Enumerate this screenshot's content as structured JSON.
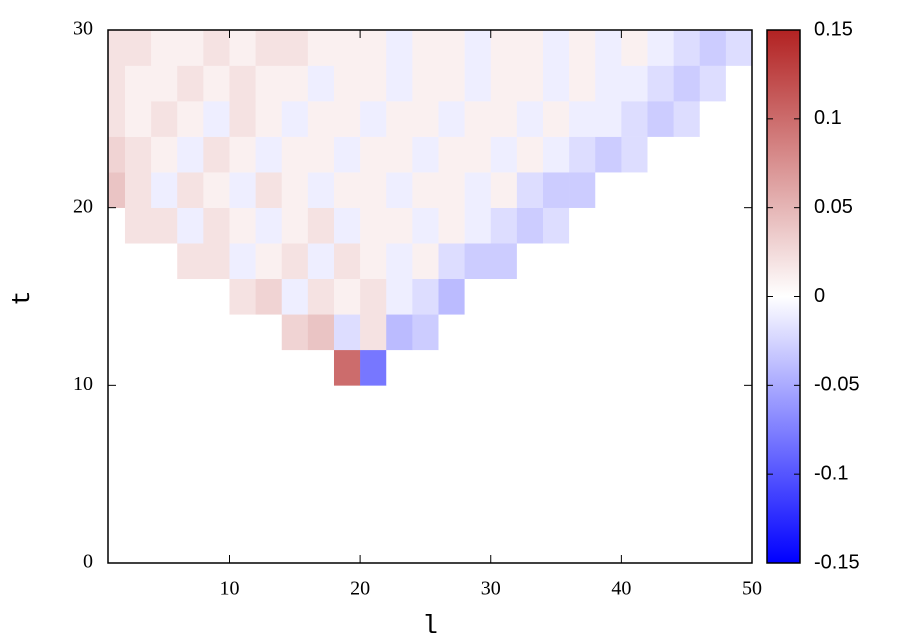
{
  "chart_data": {
    "type": "heatmap",
    "xlabel": "l",
    "ylabel": "t",
    "x_bins": [
      0.7,
      2,
      4,
      6,
      8,
      10,
      12,
      14,
      16,
      18,
      20,
      22,
      24,
      26,
      28,
      30,
      32,
      34,
      36,
      38,
      40,
      42,
      44,
      46,
      48,
      50
    ],
    "y_bins": [
      0,
      2,
      4,
      6,
      8,
      10,
      12,
      14,
      16,
      18,
      20,
      22,
      24,
      26,
      28,
      30
    ],
    "xlim": [
      0.7,
      50
    ],
    "ylim": [
      0,
      30
    ],
    "xticks": [
      10,
      20,
      30,
      40,
      50
    ],
    "yticks": [
      0,
      10,
      20,
      30
    ],
    "zlim": [
      -0.15,
      0.15
    ],
    "zticks": [
      0.15,
      0.1,
      0.05,
      0,
      -0.05,
      -0.1,
      -0.15
    ],
    "colormap": [
      "#0000ff",
      "#ffffff",
      "#b22222"
    ],
    "values": [
      [
        0,
        0,
        0,
        0,
        0,
        0,
        0,
        0,
        0,
        0,
        0,
        0,
        0,
        0,
        0,
        0,
        0,
        0,
        0,
        0,
        0,
        0,
        0,
        0,
        0
      ],
      [
        0,
        0,
        0,
        0,
        0,
        0,
        0,
        0,
        0,
        0,
        0,
        0,
        0,
        0,
        0,
        0,
        0,
        0,
        0,
        0,
        0,
        0,
        0,
        0,
        0
      ],
      [
        0,
        0,
        0,
        0,
        0,
        0,
        0,
        0,
        0,
        0,
        0,
        0,
        0,
        0,
        0,
        0,
        0,
        0,
        0,
        0,
        0,
        0,
        0,
        0,
        0
      ],
      [
        0,
        0,
        0,
        0,
        0,
        0,
        0,
        0,
        0,
        0,
        0,
        0,
        0,
        0,
        0,
        0,
        0,
        0,
        0,
        0,
        0,
        0,
        0,
        0,
        0
      ],
      [
        0,
        0,
        0,
        0,
        0,
        0,
        0,
        0,
        0,
        0,
        0,
        0,
        0,
        0,
        0,
        0,
        0,
        0,
        0,
        0,
        0,
        0,
        0,
        0,
        0
      ],
      [
        0,
        0,
        0,
        0,
        0,
        0,
        0,
        0,
        0,
        0.1,
        -0.08,
        0,
        0,
        0,
        0,
        0,
        0,
        0,
        0,
        0,
        0,
        0,
        0,
        0,
        0
      ],
      [
        0,
        0,
        0,
        0,
        0,
        0,
        0,
        0.03,
        0.04,
        -0.02,
        0.02,
        -0.04,
        -0.03,
        0,
        0,
        0,
        0,
        0,
        0,
        0,
        0,
        0,
        0,
        0,
        0
      ],
      [
        0,
        0,
        0,
        0,
        0,
        0.02,
        0.03,
        -0.01,
        0.02,
        0.01,
        0.02,
        -0.01,
        -0.02,
        -0.04,
        0,
        0,
        0,
        0,
        0,
        0,
        0,
        0,
        0,
        0,
        0
      ],
      [
        0,
        0,
        0,
        0.02,
        0.02,
        -0.01,
        0.01,
        0.02,
        -0.01,
        0.02,
        0.01,
        -0.01,
        0.01,
        -0.02,
        -0.03,
        -0.03,
        0,
        0,
        0,
        0,
        0,
        0,
        0,
        0,
        0
      ],
      [
        0,
        0.02,
        0.02,
        -0.01,
        0.02,
        0.01,
        -0.01,
        0.01,
        0.02,
        -0.01,
        0.01,
        0.01,
        -0.01,
        0.01,
        -0.01,
        -0.02,
        -0.03,
        -0.02,
        0,
        0,
        0,
        0,
        0,
        0,
        0
      ],
      [
        0.04,
        0.02,
        -0.01,
        0.02,
        0.01,
        -0.01,
        0.02,
        0.01,
        -0.01,
        0.01,
        0.01,
        -0.01,
        0.01,
        0.01,
        -0.01,
        0.01,
        -0.02,
        -0.03,
        -0.03,
        0,
        0,
        0,
        0,
        0,
        0
      ],
      [
        0.03,
        0.02,
        0.01,
        -0.01,
        0.02,
        0.01,
        -0.01,
        0.01,
        0.01,
        -0.01,
        0.01,
        0.01,
        -0.01,
        0.01,
        0.01,
        -0.01,
        0.01,
        -0.01,
        -0.02,
        -0.03,
        -0.02,
        0,
        0,
        0,
        0
      ],
      [
        0.02,
        0.01,
        0.02,
        0.01,
        -0.01,
        0.02,
        0.01,
        -0.01,
        0.01,
        0.01,
        -0.01,
        0.01,
        0.01,
        -0.01,
        0.01,
        0.01,
        -0.01,
        0.01,
        -0.01,
        -0.01,
        -0.02,
        -0.03,
        -0.02,
        0,
        0
      ],
      [
        0.02,
        0.01,
        0.01,
        0.02,
        0.01,
        0.02,
        0.01,
        0.01,
        -0.01,
        0.01,
        0.01,
        -0.01,
        0.01,
        0.01,
        -0.01,
        0.01,
        0.01,
        -0.01,
        0.01,
        -0.01,
        -0.01,
        -0.02,
        -0.03,
        -0.02,
        0
      ],
      [
        0.02,
        0.02,
        0.01,
        0.01,
        0.02,
        0.01,
        0.02,
        0.02,
        0.01,
        0.01,
        0.01,
        -0.01,
        0.01,
        0.01,
        -0.01,
        0.01,
        0.01,
        -0.01,
        0.01,
        -0.01,
        0.01,
        -0.01,
        -0.02,
        -0.03,
        -0.02
      ]
    ]
  }
}
